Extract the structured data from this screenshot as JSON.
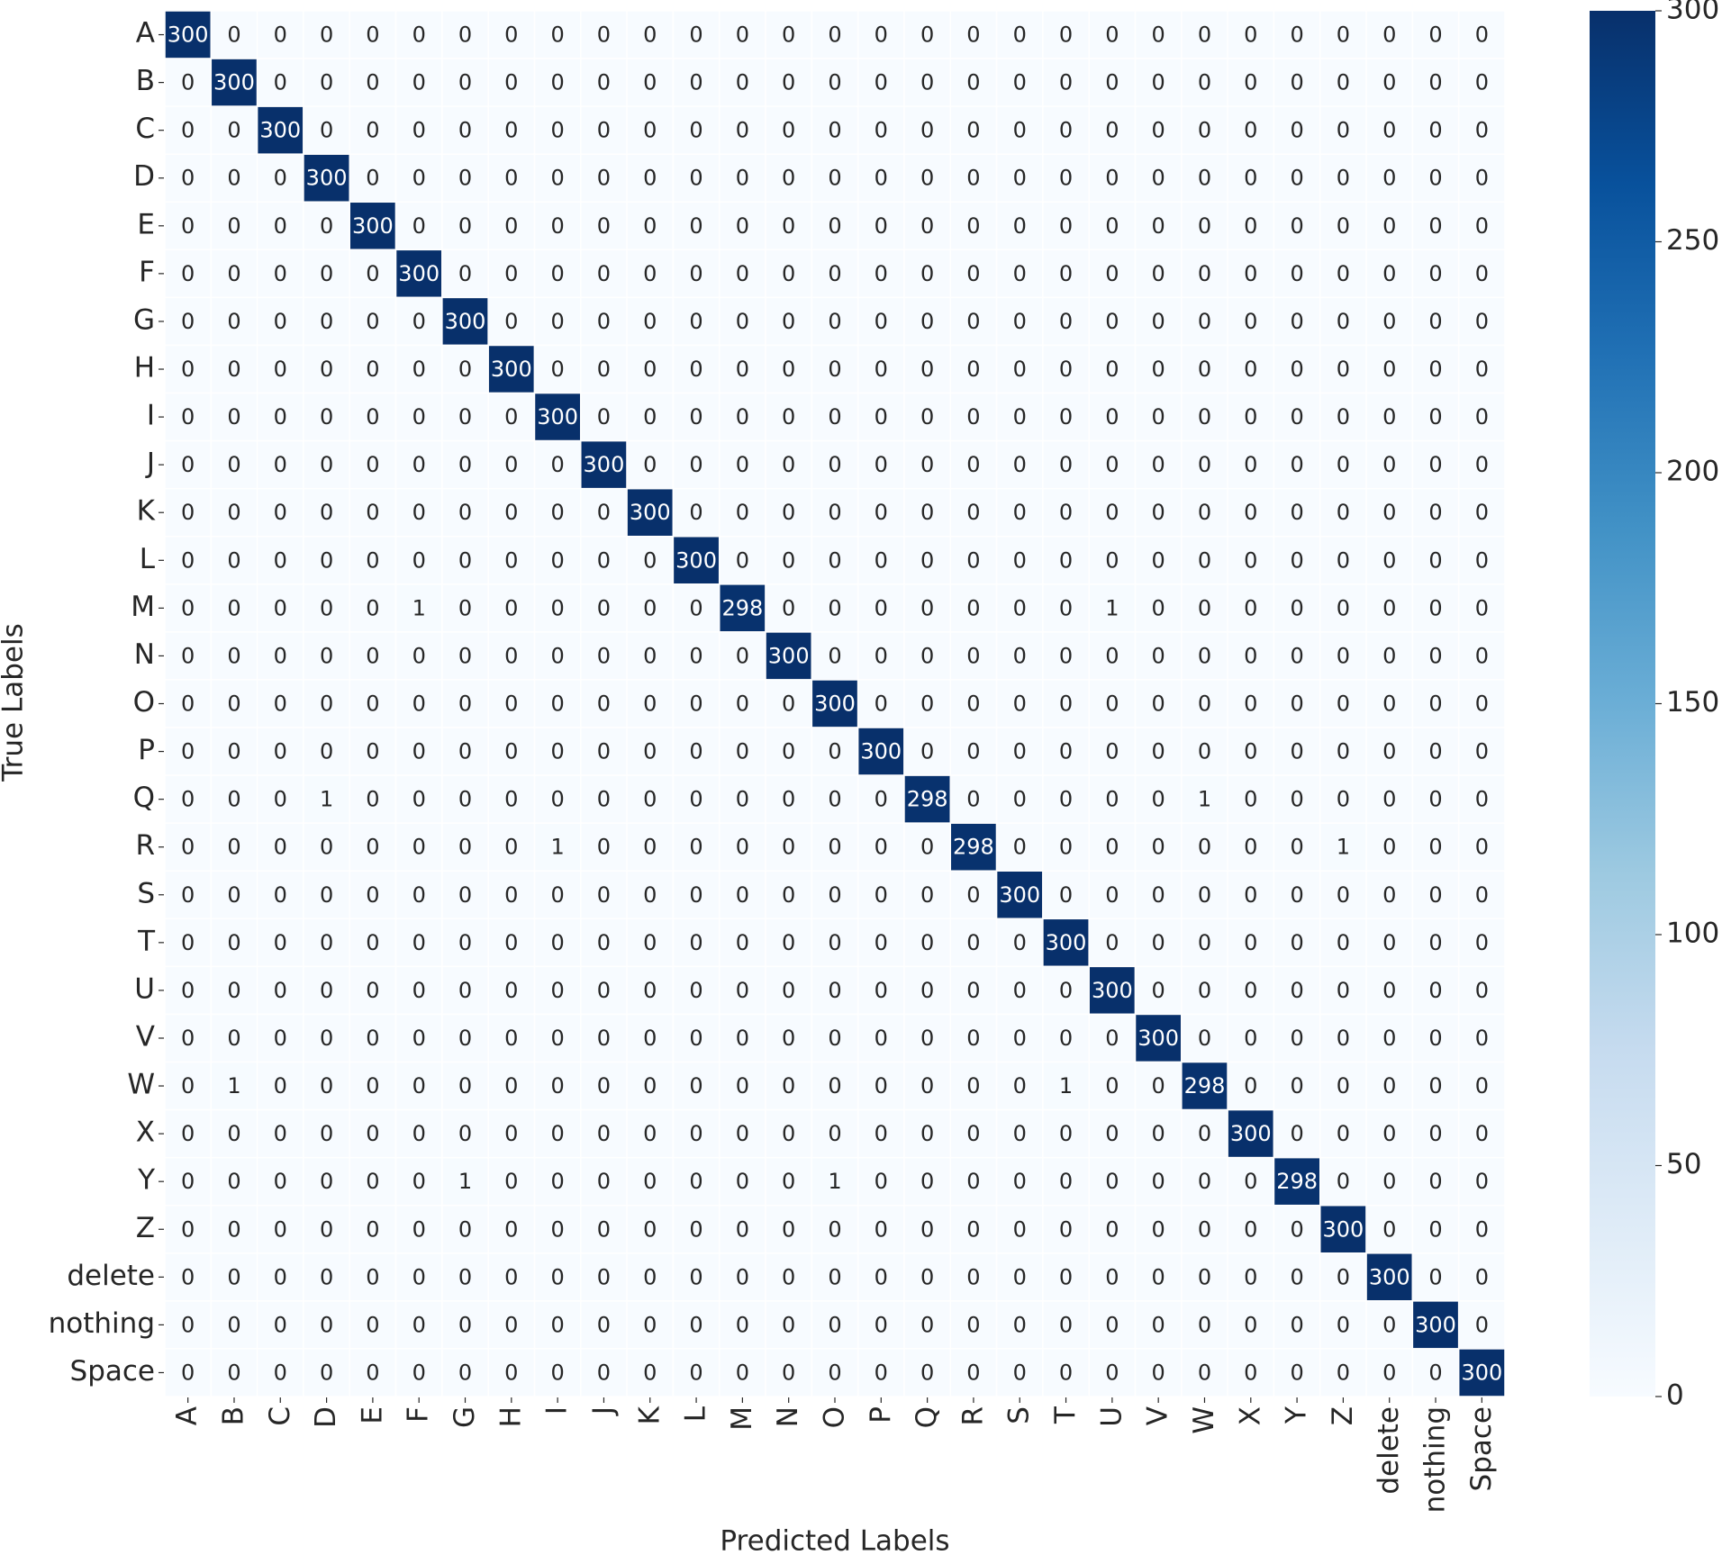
{
  "chart_data": {
    "type": "heatmap",
    "x_label": "Predicted Labels",
    "y_label": "True Labels",
    "categories": [
      "A",
      "B",
      "C",
      "D",
      "E",
      "F",
      "G",
      "H",
      "I",
      "J",
      "K",
      "L",
      "M",
      "N",
      "O",
      "P",
      "Q",
      "R",
      "S",
      "T",
      "U",
      "V",
      "W",
      "X",
      "Y",
      "Z",
      "delete",
      "nothing",
      "Space"
    ],
    "colormap": "Blues",
    "zlim": [
      0,
      300
    ],
    "zticks": [
      0,
      50,
      100,
      150,
      200,
      250,
      300
    ],
    "values": [
      [
        300,
        0,
        0,
        0,
        0,
        0,
        0,
        0,
        0,
        0,
        0,
        0,
        0,
        0,
        0,
        0,
        0,
        0,
        0,
        0,
        0,
        0,
        0,
        0,
        0,
        0,
        0,
        0,
        0
      ],
      [
        0,
        300,
        0,
        0,
        0,
        0,
        0,
        0,
        0,
        0,
        0,
        0,
        0,
        0,
        0,
        0,
        0,
        0,
        0,
        0,
        0,
        0,
        0,
        0,
        0,
        0,
        0,
        0,
        0
      ],
      [
        0,
        0,
        300,
        0,
        0,
        0,
        0,
        0,
        0,
        0,
        0,
        0,
        0,
        0,
        0,
        0,
        0,
        0,
        0,
        0,
        0,
        0,
        0,
        0,
        0,
        0,
        0,
        0,
        0
      ],
      [
        0,
        0,
        0,
        300,
        0,
        0,
        0,
        0,
        0,
        0,
        0,
        0,
        0,
        0,
        0,
        0,
        0,
        0,
        0,
        0,
        0,
        0,
        0,
        0,
        0,
        0,
        0,
        0,
        0
      ],
      [
        0,
        0,
        0,
        0,
        300,
        0,
        0,
        0,
        0,
        0,
        0,
        0,
        0,
        0,
        0,
        0,
        0,
        0,
        0,
        0,
        0,
        0,
        0,
        0,
        0,
        0,
        0,
        0,
        0
      ],
      [
        0,
        0,
        0,
        0,
        0,
        300,
        0,
        0,
        0,
        0,
        0,
        0,
        0,
        0,
        0,
        0,
        0,
        0,
        0,
        0,
        0,
        0,
        0,
        0,
        0,
        0,
        0,
        0,
        0
      ],
      [
        0,
        0,
        0,
        0,
        0,
        0,
        300,
        0,
        0,
        0,
        0,
        0,
        0,
        0,
        0,
        0,
        0,
        0,
        0,
        0,
        0,
        0,
        0,
        0,
        0,
        0,
        0,
        0,
        0
      ],
      [
        0,
        0,
        0,
        0,
        0,
        0,
        0,
        300,
        0,
        0,
        0,
        0,
        0,
        0,
        0,
        0,
        0,
        0,
        0,
        0,
        0,
        0,
        0,
        0,
        0,
        0,
        0,
        0,
        0
      ],
      [
        0,
        0,
        0,
        0,
        0,
        0,
        0,
        0,
        300,
        0,
        0,
        0,
        0,
        0,
        0,
        0,
        0,
        0,
        0,
        0,
        0,
        0,
        0,
        0,
        0,
        0,
        0,
        0,
        0
      ],
      [
        0,
        0,
        0,
        0,
        0,
        0,
        0,
        0,
        0,
        300,
        0,
        0,
        0,
        0,
        0,
        0,
        0,
        0,
        0,
        0,
        0,
        0,
        0,
        0,
        0,
        0,
        0,
        0,
        0
      ],
      [
        0,
        0,
        0,
        0,
        0,
        0,
        0,
        0,
        0,
        0,
        300,
        0,
        0,
        0,
        0,
        0,
        0,
        0,
        0,
        0,
        0,
        0,
        0,
        0,
        0,
        0,
        0,
        0,
        0
      ],
      [
        0,
        0,
        0,
        0,
        0,
        0,
        0,
        0,
        0,
        0,
        0,
        300,
        0,
        0,
        0,
        0,
        0,
        0,
        0,
        0,
        0,
        0,
        0,
        0,
        0,
        0,
        0,
        0,
        0
      ],
      [
        0,
        0,
        0,
        0,
        0,
        1,
        0,
        0,
        0,
        0,
        0,
        0,
        298,
        0,
        0,
        0,
        0,
        0,
        0,
        0,
        1,
        0,
        0,
        0,
        0,
        0,
        0,
        0,
        0
      ],
      [
        0,
        0,
        0,
        0,
        0,
        0,
        0,
        0,
        0,
        0,
        0,
        0,
        0,
        300,
        0,
        0,
        0,
        0,
        0,
        0,
        0,
        0,
        0,
        0,
        0,
        0,
        0,
        0,
        0
      ],
      [
        0,
        0,
        0,
        0,
        0,
        0,
        0,
        0,
        0,
        0,
        0,
        0,
        0,
        0,
        300,
        0,
        0,
        0,
        0,
        0,
        0,
        0,
        0,
        0,
        0,
        0,
        0,
        0,
        0
      ],
      [
        0,
        0,
        0,
        0,
        0,
        0,
        0,
        0,
        0,
        0,
        0,
        0,
        0,
        0,
        0,
        300,
        0,
        0,
        0,
        0,
        0,
        0,
        0,
        0,
        0,
        0,
        0,
        0,
        0
      ],
      [
        0,
        0,
        0,
        1,
        0,
        0,
        0,
        0,
        0,
        0,
        0,
        0,
        0,
        0,
        0,
        0,
        298,
        0,
        0,
        0,
        0,
        0,
        1,
        0,
        0,
        0,
        0,
        0,
        0
      ],
      [
        0,
        0,
        0,
        0,
        0,
        0,
        0,
        0,
        1,
        0,
        0,
        0,
        0,
        0,
        0,
        0,
        0,
        298,
        0,
        0,
        0,
        0,
        0,
        0,
        0,
        1,
        0,
        0,
        0
      ],
      [
        0,
        0,
        0,
        0,
        0,
        0,
        0,
        0,
        0,
        0,
        0,
        0,
        0,
        0,
        0,
        0,
        0,
        0,
        300,
        0,
        0,
        0,
        0,
        0,
        0,
        0,
        0,
        0,
        0
      ],
      [
        0,
        0,
        0,
        0,
        0,
        0,
        0,
        0,
        0,
        0,
        0,
        0,
        0,
        0,
        0,
        0,
        0,
        0,
        0,
        300,
        0,
        0,
        0,
        0,
        0,
        0,
        0,
        0,
        0
      ],
      [
        0,
        0,
        0,
        0,
        0,
        0,
        0,
        0,
        0,
        0,
        0,
        0,
        0,
        0,
        0,
        0,
        0,
        0,
        0,
        0,
        300,
        0,
        0,
        0,
        0,
        0,
        0,
        0,
        0
      ],
      [
        0,
        0,
        0,
        0,
        0,
        0,
        0,
        0,
        0,
        0,
        0,
        0,
        0,
        0,
        0,
        0,
        0,
        0,
        0,
        0,
        0,
        300,
        0,
        0,
        0,
        0,
        0,
        0,
        0
      ],
      [
        0,
        1,
        0,
        0,
        0,
        0,
        0,
        0,
        0,
        0,
        0,
        0,
        0,
        0,
        0,
        0,
        0,
        0,
        0,
        1,
        0,
        0,
        298,
        0,
        0,
        0,
        0,
        0,
        0
      ],
      [
        0,
        0,
        0,
        0,
        0,
        0,
        0,
        0,
        0,
        0,
        0,
        0,
        0,
        0,
        0,
        0,
        0,
        0,
        0,
        0,
        0,
        0,
        0,
        300,
        0,
        0,
        0,
        0,
        0
      ],
      [
        0,
        0,
        0,
        0,
        0,
        0,
        1,
        0,
        0,
        0,
        0,
        0,
        0,
        0,
        1,
        0,
        0,
        0,
        0,
        0,
        0,
        0,
        0,
        0,
        298,
        0,
        0,
        0,
        0
      ],
      [
        0,
        0,
        0,
        0,
        0,
        0,
        0,
        0,
        0,
        0,
        0,
        0,
        0,
        0,
        0,
        0,
        0,
        0,
        0,
        0,
        0,
        0,
        0,
        0,
        0,
        300,
        0,
        0,
        0
      ],
      [
        0,
        0,
        0,
        0,
        0,
        0,
        0,
        0,
        0,
        0,
        0,
        0,
        0,
        0,
        0,
        0,
        0,
        0,
        0,
        0,
        0,
        0,
        0,
        0,
        0,
        0,
        300,
        0,
        0
      ],
      [
        0,
        0,
        0,
        0,
        0,
        0,
        0,
        0,
        0,
        0,
        0,
        0,
        0,
        0,
        0,
        0,
        0,
        0,
        0,
        0,
        0,
        0,
        0,
        0,
        0,
        0,
        0,
        300,
        0
      ],
      [
        0,
        0,
        0,
        0,
        0,
        0,
        0,
        0,
        0,
        0,
        0,
        0,
        0,
        0,
        0,
        0,
        0,
        0,
        0,
        0,
        0,
        0,
        0,
        0,
        0,
        0,
        0,
        0,
        300
      ]
    ]
  }
}
